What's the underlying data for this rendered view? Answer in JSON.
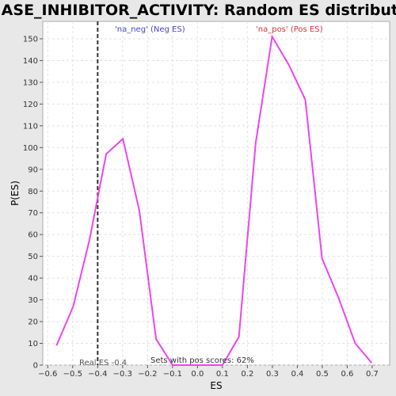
{
  "chart_data": {
    "type": "line",
    "title": "KINASE_INHIBITOR_ACTIVITY: Random ES distribution",
    "xlabel": "ES",
    "ylabel": "P(ES)",
    "xlim": [
      -0.62,
      0.77
    ],
    "ylim": [
      0,
      158
    ],
    "x_ticks": [
      -0.6,
      -0.5,
      -0.4,
      -0.3,
      -0.2,
      -0.1,
      0.0,
      0.1,
      0.2,
      0.3,
      0.4,
      0.5,
      0.6,
      0.7
    ],
    "x_tick_labels": [
      "−0.6",
      "−0.5",
      "−0.4",
      "−0.3",
      "−0.2",
      "−0.1",
      "0.0",
      "0.1",
      "0.2",
      "0.3",
      "0.4",
      "0.5",
      "0.6",
      "0.7"
    ],
    "y_ticks": [
      0,
      10,
      20,
      30,
      40,
      50,
      60,
      70,
      80,
      90,
      100,
      110,
      120,
      130,
      140,
      150
    ],
    "grid": true,
    "series": [
      {
        "color": "#ee44ee",
        "x": [
          -0.565,
          -0.498,
          -0.432,
          -0.366,
          -0.299,
          -0.233,
          -0.166,
          -0.1,
          -0.033,
          0.033,
          0.1,
          0.166,
          0.233,
          0.299,
          0.366,
          0.432,
          0.499,
          0.565,
          0.632,
          0.698
        ],
        "y": [
          9,
          27,
          58,
          97,
          104,
          71,
          12,
          0,
          0,
          0,
          0,
          13,
          102,
          151,
          138,
          122,
          49,
          31,
          10,
          1
        ]
      }
    ],
    "real_es_line": {
      "x": -0.4,
      "color": "#333333"
    },
    "annotations": {
      "neg_label": "'na_neg' (Neg ES)",
      "pos_label": "'na_pos' (Pos ES)",
      "real_es": "Real ES -0.4",
      "pos_scores": "Sets with pos scores: 62%",
      "neg_color": "#4444cc",
      "pos_color": "#dd3333"
    }
  }
}
